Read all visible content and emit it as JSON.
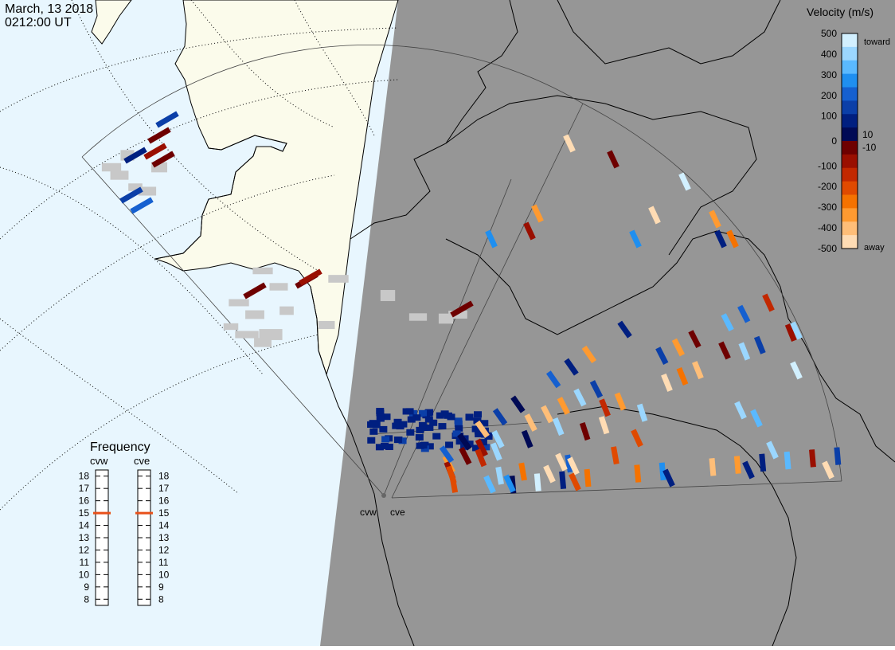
{
  "header": {
    "date": "March, 13 2018",
    "time": "0212:00 UT"
  },
  "colors": {
    "ocean": "#e8f6fe",
    "land_day": "#fbfbeb",
    "night": "#969696",
    "ground_scatter": "#c8c8c8",
    "coast": "#000000",
    "freq_marker": "#e8501a"
  },
  "chart_data": {
    "type": "heatmap",
    "title": "",
    "radars": [
      "cvw",
      "cve"
    ],
    "legend": {
      "title": "Velocity (m/s)",
      "top_label": "toward",
      "bottom_label": "away",
      "ticks": [
        "500",
        "400",
        "300",
        "200",
        "100",
        "10",
        "0",
        "-10",
        "-100",
        "-200",
        "-300",
        "-400",
        "-500"
      ],
      "colors": [
        "#d2f0ff",
        "#9bd7ff",
        "#5ab9ff",
        "#1f8ff0",
        "#1560d0",
        "#0b3fa8",
        "#001f80",
        "#000a55",
        "#6e0000",
        "#9a0f00",
        "#c22800",
        "#e04a00",
        "#f57200",
        "#ff9a30",
        "#ffbe78",
        "#ffdcb4"
      ],
      "range": [
        -500,
        500
      ],
      "placement": "top-right"
    },
    "frequency": {
      "title": "Frequency",
      "ticks": [
        "18",
        "17",
        "16",
        "15",
        "14",
        "13",
        "12",
        "11",
        "10",
        "9",
        "8"
      ],
      "range": [
        8,
        18
      ],
      "radar_values": [
        {
          "name": "cvw",
          "value": 15
        },
        {
          "name": "cve",
          "value": 15
        }
      ]
    },
    "velocity_scale_classes": [
      "toward-500",
      "toward-300",
      "toward-100",
      "toward-10",
      "away-10",
      "away-100",
      "away-300",
      "away-500"
    ]
  }
}
